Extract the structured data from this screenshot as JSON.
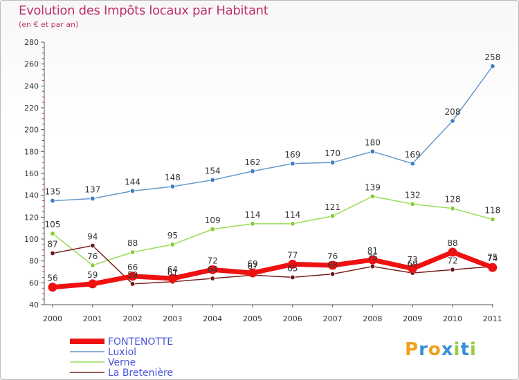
{
  "header": {
    "title": "Evolution des Impôts locaux par Habitant",
    "subtitle": "(en € et par an)"
  },
  "logo": {
    "text": "Proxiti",
    "letters": [
      {
        "ch": "P",
        "color": "#f0a020"
      },
      {
        "ch": "r",
        "color": "#3a8fd8"
      },
      {
        "ch": "o",
        "color": "#f0a020"
      },
      {
        "ch": "x",
        "color": "#3a8fd8"
      },
      {
        "ch": "i",
        "color": "#9acb3c"
      },
      {
        "ch": "t",
        "color": "#3a8fd8"
      },
      {
        "ch": "i",
        "color": "#9acb3c"
      }
    ]
  },
  "chart_data": {
    "type": "line",
    "title": "Evolution des Impôts locaux par Habitant",
    "subtitle": "(en € et par an)",
    "xlabel": "",
    "ylabel": "",
    "categories": [
      "2000",
      "2001",
      "2002",
      "2003",
      "2004",
      "2005",
      "2006",
      "2007",
      "2008",
      "2009",
      "2010",
      "2011"
    ],
    "ylim": [
      40,
      280
    ],
    "yticks": [
      40,
      60,
      80,
      100,
      120,
      140,
      160,
      180,
      200,
      220,
      240,
      260,
      280
    ],
    "grid": false,
    "legend": "bottom-left",
    "series": [
      {
        "name": "FONTENOTTE",
        "color": "#ee1111",
        "thick": true,
        "values": [
          56,
          59,
          66,
          64,
          72,
          69,
          77,
          76,
          81,
          73,
          88,
          74
        ],
        "labels": [
          "56",
          "59",
          "66",
          "64",
          "72",
          "69",
          "77",
          "76",
          "81",
          "73",
          "88",
          "74"
        ]
      },
      {
        "name": "Luxiol",
        "color": "#6699cc",
        "marker": "#3a7fc4",
        "thick": false,
        "values": [
          135,
          137,
          144,
          148,
          154,
          162,
          169,
          170,
          180,
          169,
          208,
          258
        ],
        "labels": [
          "135",
          "137",
          "144",
          "148",
          "154",
          "162",
          "169",
          "170",
          "180",
          "169",
          "208",
          "258"
        ]
      },
      {
        "name": "Verne",
        "color": "#99dd55",
        "marker": "#88cc33",
        "thick": false,
        "values": [
          105,
          76,
          88,
          95,
          109,
          114,
          114,
          121,
          139,
          132,
          128,
          118
        ],
        "labels": [
          "105",
          "76",
          "88",
          "95",
          "109",
          "114",
          "114",
          "121",
          "139",
          "132",
          "128",
          "118"
        ]
      },
      {
        "name": "La Bretenière",
        "color": "#7a2222",
        "marker": "#6a1818",
        "thick": false,
        "values": [
          87,
          94,
          59,
          61,
          64,
          67,
          65,
          68,
          75,
          69,
          72,
          75
        ],
        "labels": [
          "87",
          "94",
          "59",
          "61",
          "64",
          "67",
          "65",
          "68",
          "75",
          "69",
          "72",
          "75"
        ]
      }
    ]
  }
}
